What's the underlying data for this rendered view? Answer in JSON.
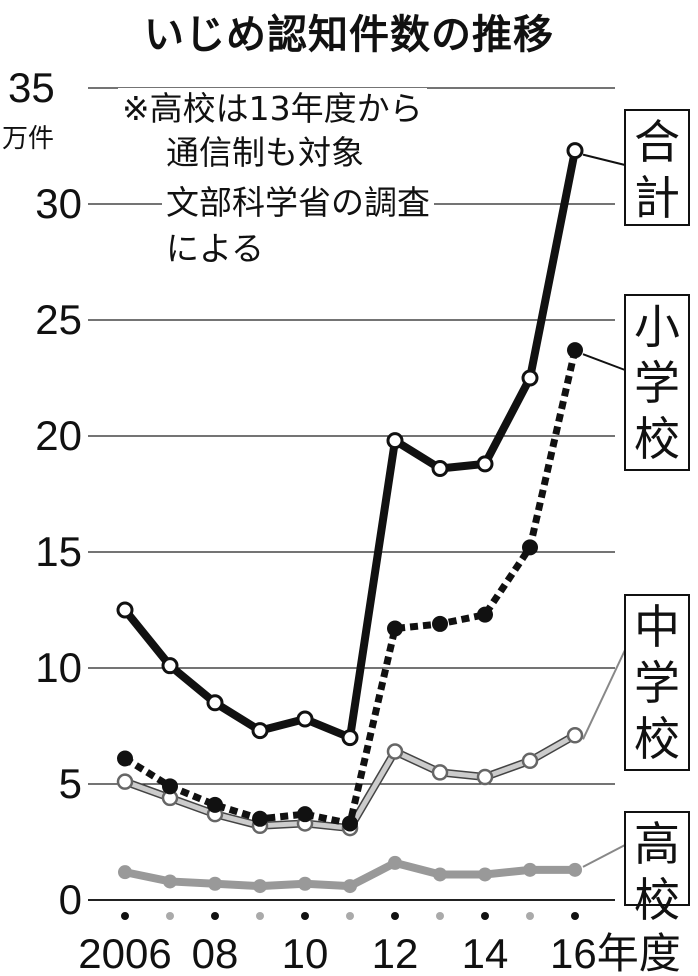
{
  "chart_data": {
    "type": "line",
    "title": "いじめ認知件数の推移",
    "ylabel": "万件",
    "xlabel": "年度",
    "ylim": [
      0,
      35
    ],
    "yticks": [
      0,
      5,
      10,
      15,
      20,
      25,
      30,
      35
    ],
    "grid": true,
    "x": [
      2006,
      2007,
      2008,
      2009,
      2010,
      2011,
      2012,
      2013,
      2014,
      2015,
      2016
    ],
    "xtick_labels": [
      "2006",
      "08",
      "10",
      "12",
      "14",
      "16年度"
    ],
    "notes": [
      "※高校は13年度から",
      "通信制も対象",
      "文部科学省の調査",
      "による"
    ],
    "legend_placement": "right (labels beside line ends)",
    "series": [
      {
        "name": "合計",
        "style": "black solid, open markers",
        "values": [
          12.5,
          10.1,
          8.5,
          7.3,
          7.8,
          7.0,
          19.8,
          18.6,
          18.8,
          22.5,
          32.3
        ]
      },
      {
        "name": "小学校",
        "style": "black dotted, filled markers",
        "values": [
          6.1,
          4.9,
          4.1,
          3.5,
          3.7,
          3.3,
          11.7,
          11.9,
          12.3,
          15.2,
          23.7
        ]
      },
      {
        "name": "中学校",
        "style": "light gray outlined, open markers",
        "values": [
          5.1,
          4.4,
          3.7,
          3.2,
          3.3,
          3.1,
          6.4,
          5.5,
          5.3,
          6.0,
          7.1
        ]
      },
      {
        "name": "高校",
        "style": "gray solid, gray markers",
        "values": [
          1.2,
          0.8,
          0.7,
          0.6,
          0.7,
          0.6,
          1.6,
          1.1,
          1.1,
          1.3,
          1.3
        ]
      }
    ]
  }
}
